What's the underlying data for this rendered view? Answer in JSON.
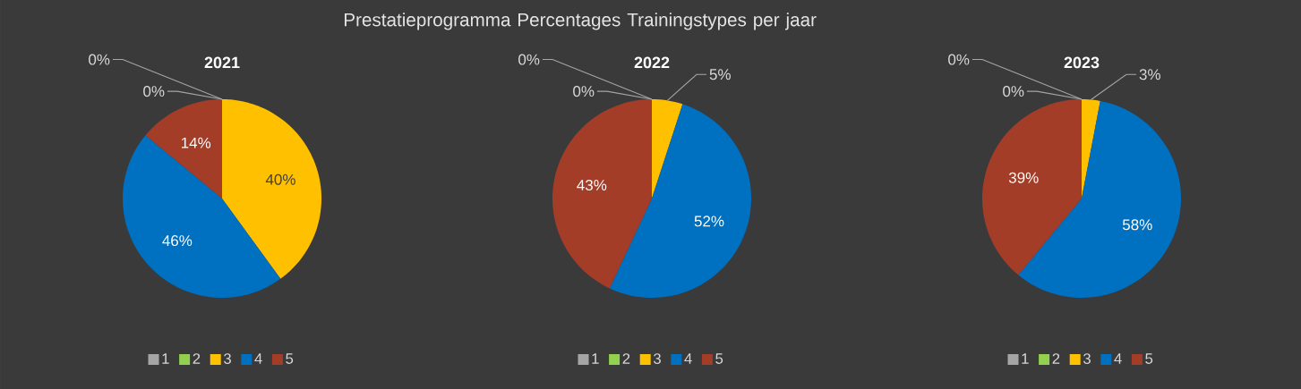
{
  "chart_data": [
    {
      "type": "pie",
      "title": "2021",
      "categories": [
        "1",
        "2",
        "3",
        "4",
        "5"
      ],
      "values": [
        0,
        0,
        40,
        46,
        14
      ],
      "value_labels": [
        "0%",
        "0%",
        "40%",
        "46%",
        "14%"
      ],
      "colors": [
        "#a5a5a5",
        "#92d050",
        "#ffc000",
        "#0070c0",
        "#a33d27"
      ],
      "legend": "bottom"
    },
    {
      "type": "pie",
      "title": "Prestatieprogramma Percentages Trainingstypes per jaar",
      "subtitle": "2022",
      "categories": [
        "1",
        "2",
        "3",
        "4",
        "5"
      ],
      "values": [
        0,
        0,
        5,
        52,
        43
      ],
      "value_labels": [
        "0%",
        "0%",
        "5%",
        "52%",
        "43%"
      ],
      "colors": [
        "#a5a5a5",
        "#92d050",
        "#ffc000",
        "#0070c0",
        "#a33d27"
      ],
      "legend": "bottom"
    },
    {
      "type": "pie",
      "title": "2023",
      "categories": [
        "1",
        "2",
        "3",
        "4",
        "5"
      ],
      "values": [
        0,
        0,
        3,
        58,
        39
      ],
      "value_labels": [
        "0%",
        "0%",
        "3%",
        "58%",
        "39%"
      ],
      "colors": [
        "#a5a5a5",
        "#92d050",
        "#ffc000",
        "#0070c0",
        "#a33d27"
      ],
      "legend": "bottom"
    }
  ]
}
